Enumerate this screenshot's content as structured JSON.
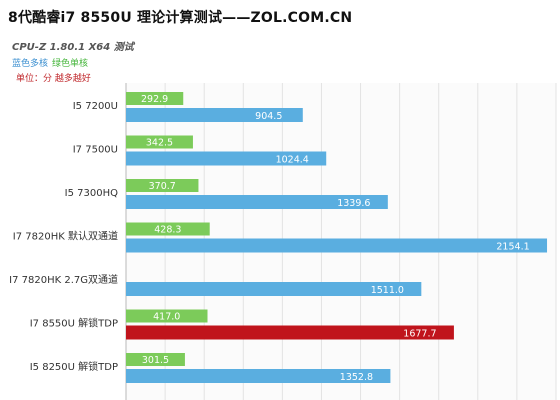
{
  "chart_data": {
    "type": "bar",
    "orientation": "horizontal",
    "title": "8代酷睿i7 8550U 理论计算测试——ZOL.COM.CN",
    "subtitle": "CPU-Z 1.80.1 X64 测试",
    "legend": {
      "placement": "top-left",
      "entries": [
        "蓝色多核",
        "绿色单核"
      ]
    },
    "unit_note": "单位：分 越多越好",
    "categories": [
      "I5 7200U",
      "I7 7500U",
      "I5 7300HQ",
      "I7 7820HK  默认双通道",
      "I7 7820HK  2.7G双通道",
      "I7 8550U  解锁TDP",
      "I5 8250U  解锁TDP"
    ],
    "series": [
      {
        "name": "绿色单核",
        "color": "#7ccb5a",
        "values": [
          292.9,
          342.5,
          370.7,
          428.3,
          null,
          417.0,
          301.5
        ]
      },
      {
        "name": "蓝色多核",
        "color": "#5aaee0",
        "highlight_color": "#c0141c",
        "highlight_index": 5,
        "values": [
          904.5,
          1024.4,
          1339.6,
          2154.1,
          1511.0,
          1677.7,
          1352.8
        ]
      }
    ],
    "value_labels": {
      "single": [
        "292.9",
        "342.5",
        "370.7",
        "428.3",
        "",
        "417.0",
        "301.5"
      ],
      "multi": [
        "904.5",
        "1024.4",
        "1339.6",
        "2154.1",
        "1511.0",
        "1677.7",
        "1352.8"
      ]
    },
    "xlim": [
      0,
      2200
    ],
    "grid": true
  }
}
